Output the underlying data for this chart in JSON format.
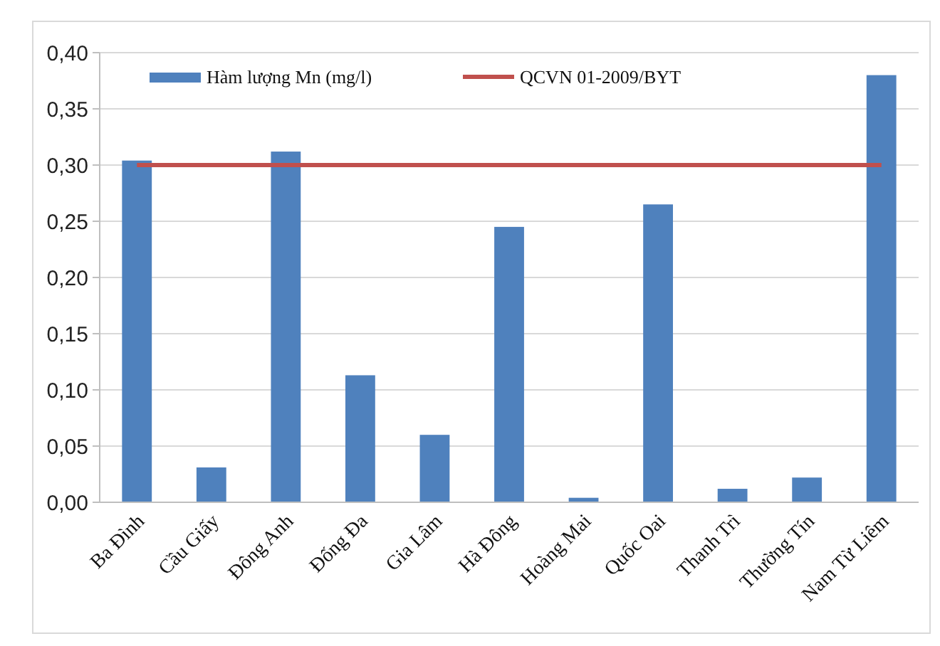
{
  "chart_data": {
    "type": "bar",
    "categories": [
      "Ba Đình",
      "Cầu Giấy",
      "Đông Anh",
      "Đống Đa",
      "Gia Lâm",
      "Hà Đông",
      "Hoàng Mai",
      "Quốc Oai",
      "Thanh Trì",
      "Thường Tín",
      "Nam Từ Liêm"
    ],
    "series": [
      {
        "name": "Hàm lượng  Mn (mg/l)",
        "color": "#4f81bd",
        "values": [
          0.304,
          0.031,
          0.312,
          0.113,
          0.06,
          0.245,
          0.004,
          0.265,
          0.012,
          0.022,
          0.38
        ]
      },
      {
        "type": "line",
        "name": "QCVN 01-2009/BYT",
        "color": "#c0504d",
        "values": [
          0.3,
          0.3,
          0.3,
          0.3,
          0.3,
          0.3,
          0.3,
          0.3,
          0.3,
          0.3,
          0.3
        ]
      }
    ],
    "ylim": [
      0,
      0.4
    ],
    "yticks": [
      {
        "value": 0,
        "label": "0,00"
      },
      {
        "value": 0.05,
        "label": "0,05"
      },
      {
        "value": 0.1,
        "label": "0,10"
      },
      {
        "value": 0.15,
        "label": "0,15"
      },
      {
        "value": 0.2,
        "label": "0,20"
      },
      {
        "value": 0.25,
        "label": "0,25"
      },
      {
        "value": 0.3,
        "label": "0,30"
      },
      {
        "value": 0.35,
        "label": "0,35"
      },
      {
        "value": 0.4,
        "label": "0,40"
      }
    ],
    "grid": "y",
    "legend": "top",
    "marker": "none",
    "line_style": "solid"
  }
}
